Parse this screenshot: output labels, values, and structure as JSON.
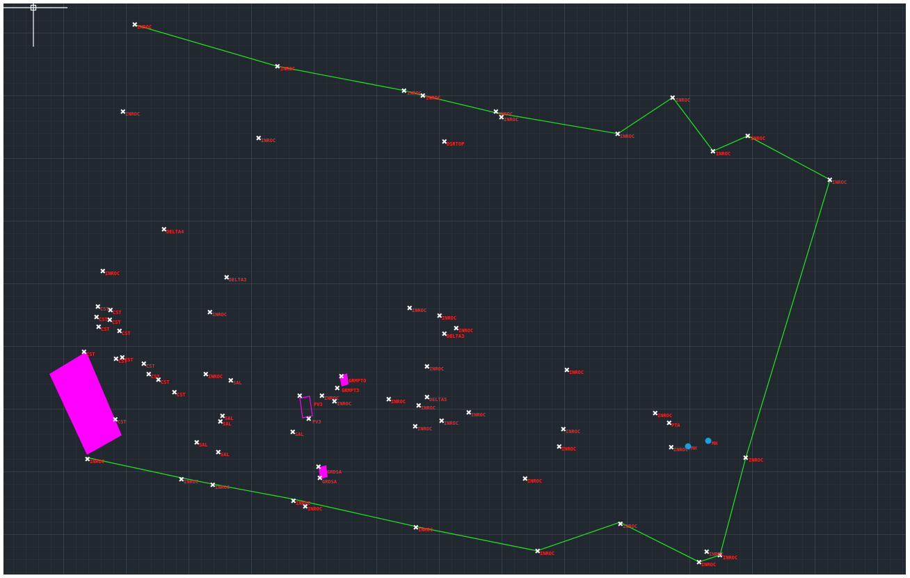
{
  "app": {
    "view": "Model space – site survey points",
    "colors": {
      "background": "#212830",
      "boundary": "#22dd22",
      "label": "#ff2222",
      "marker": "#ffffff",
      "hatch": "#ff00ff",
      "blue": "#1a9fe0"
    }
  },
  "cursor": {
    "icon": "crosshair-cursor-icon"
  },
  "labels": {
    "l01": "INROC",
    "l02": "INROC",
    "l03": "INROC",
    "l04": "INROC",
    "l05": "INROC",
    "l06": "INROC",
    "l07": "INROC",
    "l08": "INROC",
    "l09": "INROC",
    "l10": "INROC",
    "l11": "INROC",
    "l12": "INROC",
    "l13": "INROC",
    "l14": "INROC",
    "l15": "DSRTOP",
    "l16": "DELTA4",
    "l17": "DELTA3",
    "l18": "DELTA3",
    "l19": "DELTA5",
    "l20": "INROC",
    "l21": "INROC",
    "l22": "CST",
    "l23": "CST",
    "l24": "CST",
    "l25": "CST",
    "l26": "CST",
    "l27": "CST",
    "l28": "CST",
    "l29": "CST",
    "l30": "CST",
    "l31": "CST",
    "l32": "CST",
    "l33": "CST",
    "l34": "INROC",
    "l35": "INROC",
    "l36": "INROC",
    "l37": "INROC",
    "l38": "INROC",
    "l39": "INROC",
    "l40": "INROC",
    "l41": "INROC",
    "l42": "INROC",
    "l43": "INROC",
    "l44": "INROC",
    "l45": "INROC",
    "l46": "INROC",
    "l47": "INROC",
    "l48": "INROC",
    "l49": "INROC",
    "l50": "INROC",
    "l51": "INROC",
    "l52": "INROC",
    "l53": "INROC",
    "l54": "INROC",
    "l55": "INROC",
    "l56": "INROC",
    "l57": "INROC",
    "l58": "INROC",
    "l59": "INROC",
    "l60": "INROC",
    "l61": "SAL",
    "l62": "SAL",
    "l63": "SAL",
    "l64": "SAL",
    "l65": "SAL",
    "l66": "SAL",
    "l67": "PV3",
    "l68": "PV3",
    "l69": "GRDSA",
    "l70": "GRDSA",
    "l71": "GRMPTO",
    "l72": "GRMPT3",
    "l73": "PTA",
    "l74": "MH",
    "l75": "MH",
    "l76": "CST"
  }
}
